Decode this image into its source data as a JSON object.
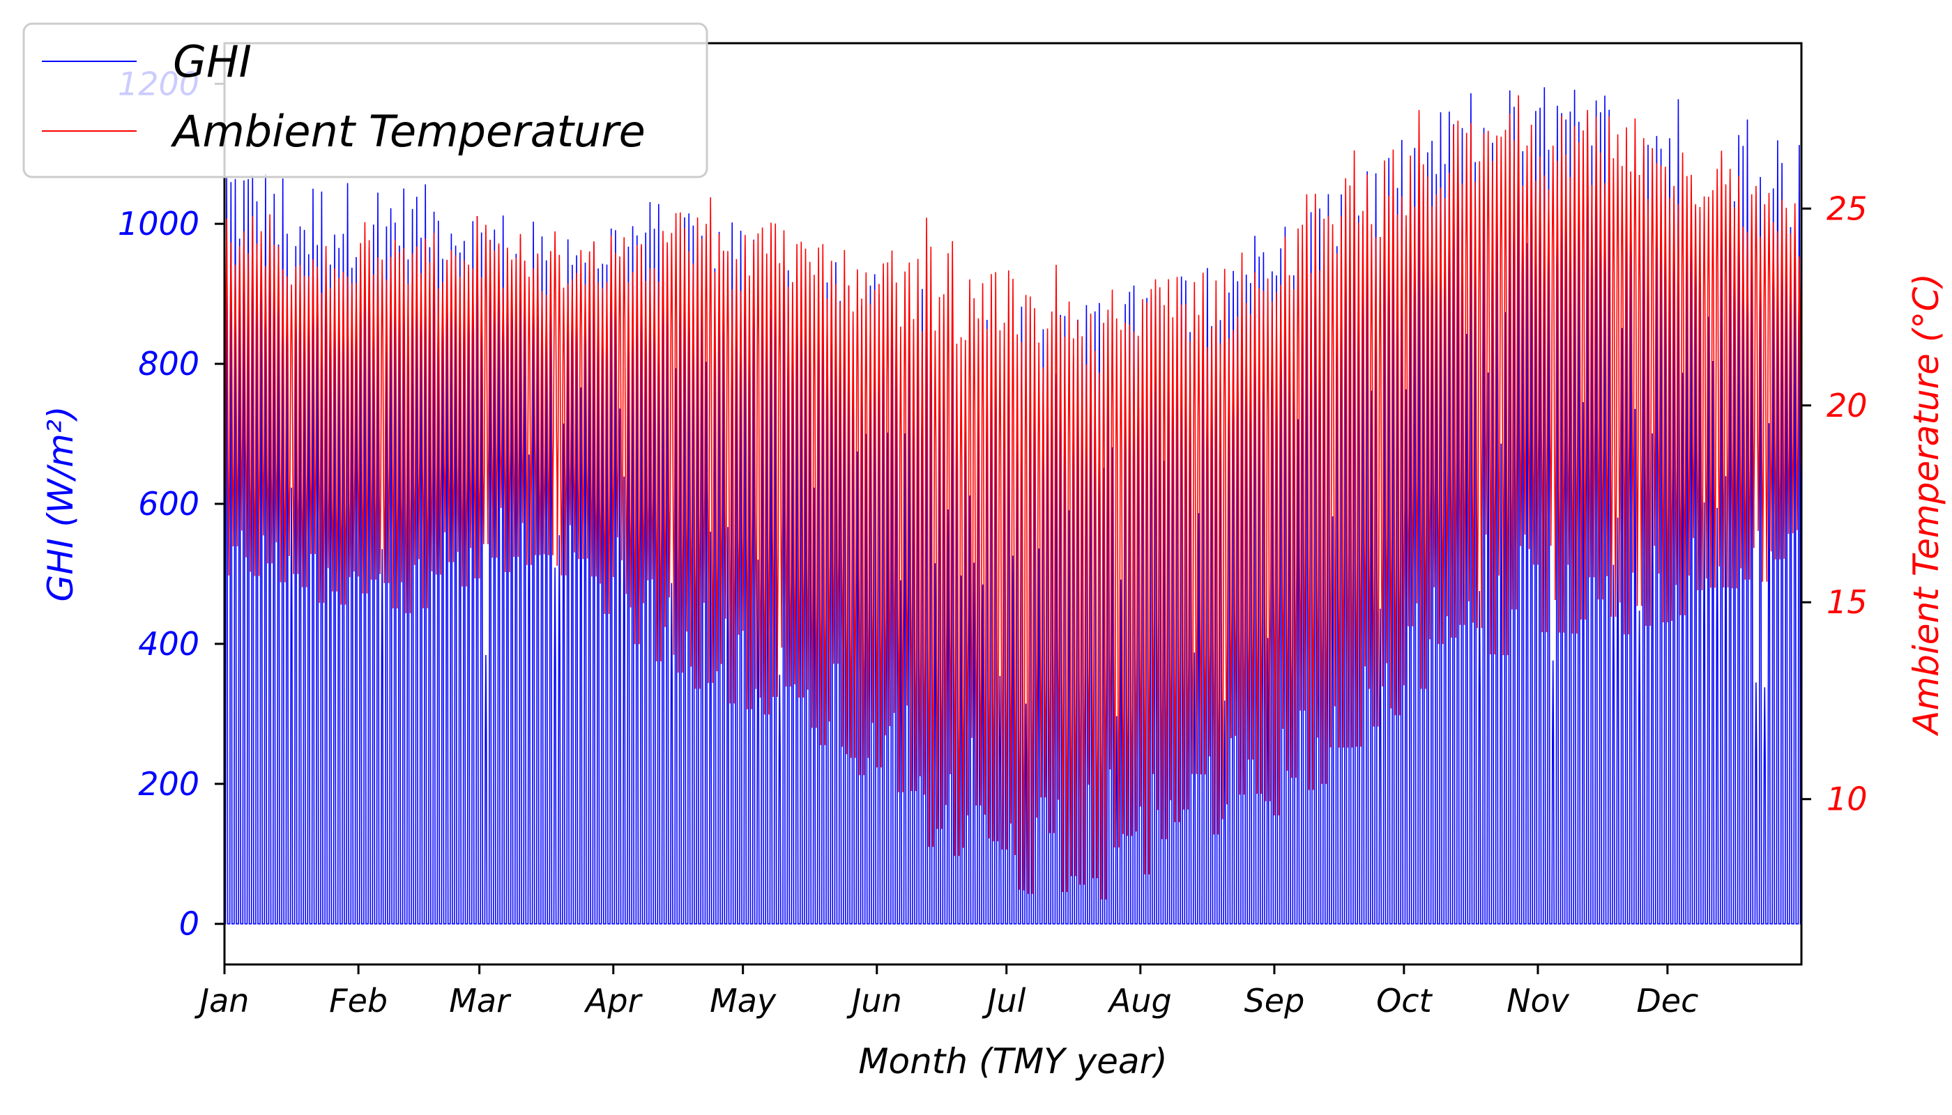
{
  "chart_data": {
    "type": "line",
    "title": "",
    "xlabel": "Month (TMY year)",
    "x_ticks": [
      "Jan",
      "Feb",
      "Mar",
      "Apr",
      "May",
      "Jun",
      "Jul",
      "Aug",
      "Sep",
      "Oct",
      "Nov",
      "Dec"
    ],
    "x_tick_days": [
      0,
      31,
      59,
      90,
      120,
      151,
      181,
      212,
      243,
      273,
      304,
      334
    ],
    "xlim_days": [
      0,
      365
    ],
    "ylabel_left": "GHI (W/m²)",
    "ylabel_right": "Ambient Temperature (°C)",
    "ylim_left": [
      -58,
      1258
    ],
    "ylim_right": [
      5.8,
      29.2
    ],
    "yticks_left": [
      "0",
      "200",
      "400",
      "600",
      "800",
      "1000",
      "1200"
    ],
    "yticks_right": [
      "10",
      "15",
      "20",
      "25"
    ],
    "legend_position": "upper-left",
    "grid": false,
    "colors": {
      "ghi": "#0000ff",
      "temperature": "#ff0000",
      "axes": "#000000"
    },
    "series": [
      {
        "name": "GHI",
        "axis": "left",
        "units": "W/m²",
        "daily_peak_by_month": [
          {
            "month": "Jan",
            "peak": [
              920,
              1070
            ]
          },
          {
            "month": "Feb",
            "peak": [
              950,
              1060
            ]
          },
          {
            "month": "Mar",
            "peak": [
              900,
              1000
            ]
          },
          {
            "month": "Apr",
            "peak": [
              920,
              1050
            ]
          },
          {
            "month": "May",
            "peak": [
              850,
              960
            ]
          },
          {
            "month": "Jun",
            "peak": [
              800,
              900
            ]
          },
          {
            "month": "Jul",
            "peak": [
              780,
              880
            ]
          },
          {
            "month": "Aug",
            "peak": [
              850,
              960
            ]
          },
          {
            "month": "Sep",
            "peak": [
              950,
              1050
            ]
          },
          {
            "month": "Oct",
            "peak": [
              1050,
              1200
            ]
          },
          {
            "month": "Nov",
            "peak": [
              1050,
              1200
            ]
          },
          {
            "month": "Dec",
            "peak": [
              1000,
              1180
            ]
          }
        ]
      },
      {
        "name": "Ambient Temperature",
        "axis": "right",
        "units": "°C",
        "daily_range_by_month": [
          {
            "month": "Jan",
            "min": 15.0,
            "max": 24.0
          },
          {
            "month": "Feb",
            "min": 14.5,
            "max": 24.5
          },
          {
            "month": "Mar",
            "min": 16.0,
            "max": 24.0
          },
          {
            "month": "Apr",
            "min": 13.0,
            "max": 25.0
          },
          {
            "month": "May",
            "min": 11.5,
            "max": 24.5
          },
          {
            "month": "Jun",
            "min": 8.5,
            "max": 24.0
          },
          {
            "month": "Jul",
            "min": 7.0,
            "max": 23.0
          },
          {
            "month": "Aug",
            "min": 8.5,
            "max": 23.5
          },
          {
            "month": "Sep",
            "min": 10.5,
            "max": 26.0
          },
          {
            "month": "Oct",
            "min": 13.5,
            "max": 27.5
          },
          {
            "month": "Nov",
            "min": 14.0,
            "max": 27.5
          },
          {
            "month": "Dec",
            "min": 15.0,
            "max": 26.0
          }
        ]
      }
    ]
  }
}
